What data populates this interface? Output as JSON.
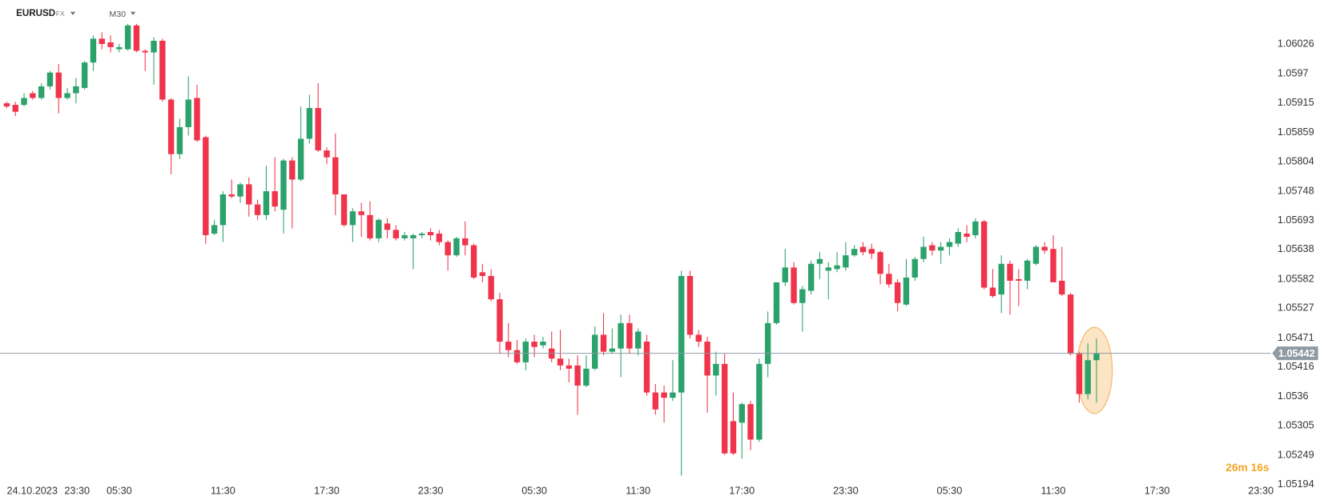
{
  "header": {
    "symbol": "EURUSD",
    "market": "FX",
    "timeframe": "M30"
  },
  "chart_data": {
    "type": "candlestick",
    "date_label": "24.10.2023",
    "countdown": "26m 16s",
    "up_color": "#2ba26c",
    "down_color": "#f0344b",
    "last_price_color": "#8f9aa3",
    "ylim": [
      1.05191,
      1.06109
    ],
    "yticks": [
      1.06026,
      1.0597,
      1.05915,
      1.05859,
      1.05804,
      1.05748,
      1.05693,
      1.05638,
      1.05582,
      1.05527,
      1.05471,
      1.05416,
      1.0536,
      1.05305,
      1.05249,
      1.05194
    ],
    "last_price": 1.05442,
    "categories": [
      null,
      "23:30",
      null,
      null,
      null,
      null,
      null,
      null,
      null,
      null,
      null,
      null,
      null,
      "05:30",
      null,
      null,
      null,
      null,
      null,
      null,
      null,
      null,
      null,
      null,
      null,
      "11:30",
      null,
      null,
      null,
      null,
      null,
      null,
      null,
      null,
      null,
      null,
      null,
      "17:30",
      null,
      null,
      null,
      null,
      null,
      null,
      null,
      null,
      null,
      null,
      null,
      "23:30",
      null,
      null,
      null,
      null,
      null,
      null,
      null,
      null,
      null,
      null,
      null,
      "05:30",
      null,
      null,
      null,
      null,
      null,
      null,
      null,
      null,
      null,
      null,
      null,
      "11:30",
      null,
      null,
      null,
      null,
      null,
      null,
      null,
      null,
      null,
      null,
      null,
      "17:30",
      null,
      null,
      null,
      null,
      null,
      null,
      null,
      null,
      null,
      null,
      null,
      "23:30",
      null,
      null,
      null,
      null,
      null,
      null,
      null,
      null,
      null,
      null,
      null,
      "05:30",
      null,
      null,
      null,
      null,
      null,
      null,
      null,
      null,
      null,
      null,
      null,
      "11:30",
      null,
      null,
      null,
      null,
      null,
      null,
      null,
      null,
      null,
      null,
      null,
      "17:30",
      null,
      null,
      null,
      null,
      null,
      null,
      null,
      null,
      null,
      null,
      null,
      "23:30"
    ],
    "open": [
      1.05914,
      1.05911,
      1.05911,
      1.05933,
      1.05924,
      1.05946,
      1.05972,
      1.05924,
      1.05933,
      1.05943,
      1.05991,
      1.06036,
      1.06029,
      1.06016,
      1.06016,
      1.06061,
      1.06013,
      1.0601,
      1.06032,
      1.05921,
      1.05818,
      1.05869,
      1.05924,
      1.0585,
      1.05668,
      1.05684,
      1.05742,
      1.05738,
      1.05761,
      1.05723,
      1.05703,
      1.05748,
      1.05713,
      1.05806,
      1.0577,
      1.05847,
      1.05905,
      1.05825,
      1.05812,
      1.05742,
      1.05684,
      1.0571,
      1.05703,
      1.05659,
      1.05687,
      1.05675,
      1.05659,
      1.05659,
      1.05665,
      1.05671,
      1.05668,
      1.05652,
      1.05627,
      1.05659,
      1.05646,
      1.05595,
      1.05588,
      1.05544,
      1.05464,
      1.05448,
      1.05425,
      1.05464,
      1.05457,
      1.05451,
      1.05432,
      1.05419,
      1.05419,
      1.05381,
      1.05413,
      1.05477,
      1.05445,
      1.05451,
      1.05499,
      1.05451,
      1.05464,
      1.05368,
      1.05368,
      1.05358,
      1.05368,
      1.05588,
      1.05477,
      1.05464,
      1.054,
      1.05422,
      1.05314,
      1.05311,
      1.05346,
      1.05279,
      1.05422,
      1.05499,
      1.05576,
      1.05604,
      1.05537,
      1.0556,
      1.05611,
      1.05598,
      1.05601,
      1.05604,
      1.05627,
      1.05643,
      1.05639,
      1.05633,
      1.05592,
      1.05576,
      1.05534,
      1.05585,
      1.0562,
      1.05646,
      1.05636,
      1.05643,
      1.05649,
      1.05668,
      1.05665,
      1.05691,
      1.05566,
      1.05553,
      1.05611,
      1.05582,
      1.05579,
      1.05611,
      1.05643,
      1.05639,
      1.05579,
      1.05553,
      1.05441,
      1.05365,
      1.05429,
      null,
      null,
      null,
      null,
      null,
      null,
      null,
      null,
      null,
      null,
      null,
      null,
      null,
      null,
      null,
      null,
      null,
      null,
      null
    ],
    "high": [
      1.05917,
      1.05917,
      1.05933,
      1.05937,
      1.05952,
      1.05975,
      1.05988,
      1.05943,
      1.05962,
      1.05994,
      1.06042,
      1.06048,
      1.06042,
      1.06026,
      1.06064,
      1.06064,
      1.06016,
      1.06039,
      1.06036,
      1.05924,
      1.05885,
      1.05965,
      1.05949,
      1.05853,
      1.05694,
      1.05748,
      1.0577,
      1.05764,
      1.05774,
      1.05732,
      1.05796,
      1.05812,
      1.05809,
      1.05812,
      1.05908,
      1.0593,
      1.05952,
      1.05831,
      1.05857,
      1.05742,
      1.05716,
      1.05726,
      1.05729,
      1.05697,
      1.05697,
      1.05684,
      1.05671,
      1.05668,
      1.05671,
      1.05678,
      1.05675,
      1.05655,
      1.05662,
      1.05691,
      1.05649,
      1.05611,
      1.05601,
      1.05556,
      1.05499,
      1.05467,
      1.0547,
      1.05477,
      1.05473,
      1.05483,
      1.05486,
      1.05432,
      1.05438,
      1.05438,
      1.05493,
      1.05518,
      1.05489,
      1.05515,
      1.05515,
      1.05489,
      1.05477,
      1.05384,
      1.05381,
      1.05429,
      1.05598,
      1.05598,
      1.05486,
      1.05473,
      1.05445,
      1.05441,
      1.05368,
      1.05349,
      1.05352,
      1.05432,
      1.05521,
      1.05576,
      1.05639,
      1.05614,
      1.05569,
      1.05617,
      1.05633,
      1.05614,
      1.05633,
      1.05652,
      1.05646,
      1.05652,
      1.05649,
      1.05636,
      1.05611,
      1.05582,
      1.0562,
      1.05624,
      1.05662,
      1.05652,
      1.05652,
      1.05659,
      1.05678,
      1.05684,
      1.05697,
      1.05694,
      1.05601,
      1.05627,
      1.05617,
      1.05601,
      1.0562,
      1.05646,
      1.05652,
      1.05665,
      1.05643,
      1.05556,
      1.05445,
      1.05461,
      1.0547,
      null,
      null,
      null,
      null,
      null,
      null,
      null,
      null,
      null,
      null,
      null,
      null,
      null,
      null,
      null,
      null,
      null,
      null,
      null
    ],
    "low": [
      1.05905,
      1.0589,
      1.05908,
      1.05921,
      1.05921,
      1.0594,
      1.05895,
      1.05921,
      1.05914,
      1.0594,
      1.05975,
      1.06016,
      1.0601,
      1.0601,
      1.06013,
      1.0601,
      1.05975,
      1.05949,
      1.05917,
      1.0578,
      1.05809,
      1.05853,
      1.05841,
      1.05649,
      1.05665,
      1.05652,
      1.05735,
      1.05726,
      1.057,
      1.05694,
      1.05694,
      1.0571,
      1.05668,
      1.05678,
      1.05767,
      1.05838,
      1.05822,
      1.05799,
      1.05703,
      1.05681,
      1.05652,
      1.05662,
      1.05655,
      1.05652,
      1.05659,
      1.05655,
      1.05655,
      1.05601,
      1.05659,
      1.05655,
      1.05646,
      1.05598,
      1.05624,
      1.05627,
      1.05582,
      1.05576,
      1.0554,
      1.05441,
      1.05435,
      1.05422,
      1.0541,
      1.05435,
      1.05451,
      1.05425,
      1.0541,
      1.05387,
      1.05326,
      1.05378,
      1.0541,
      1.05438,
      1.05441,
      1.05397,
      1.05441,
      1.05438,
      1.05362,
      1.05326,
      1.05311,
      1.05352,
      1.05211,
      1.0547,
      1.05454,
      1.0533,
      1.05362,
      1.0525,
      1.0525,
      1.05243,
      1.05259,
      1.05275,
      1.05397,
      1.05496,
      1.05569,
      1.05534,
      1.05483,
      1.05553,
      1.05582,
      1.05544,
      1.05595,
      1.05598,
      1.05624,
      1.05627,
      1.0562,
      1.05572,
      1.05566,
      1.05521,
      1.05531,
      1.05579,
      1.05614,
      1.05627,
      1.05611,
      1.05627,
      1.05643,
      1.05652,
      1.05659,
      1.05563,
      1.05547,
      1.05518,
      1.05515,
      1.05531,
      1.05563,
      1.05608,
      1.0563,
      1.05576,
      1.0555,
      1.05438,
      1.05349,
      1.05355,
      1.05349,
      null,
      null,
      null,
      null,
      null,
      null,
      null,
      null,
      null,
      null,
      null,
      null,
      null,
      null,
      null,
      null,
      null,
      null,
      null
    ],
    "close": [
      1.05908,
      1.05898,
      1.05924,
      1.05924,
      1.05946,
      1.05972,
      1.05924,
      1.05933,
      1.05946,
      1.05991,
      1.06036,
      1.06026,
      1.0602,
      1.0602,
      1.06061,
      1.06013,
      1.0601,
      1.06032,
      1.05921,
      1.05818,
      1.05869,
      1.05921,
      1.05844,
      1.05665,
      1.05684,
      1.05742,
      1.05738,
      1.05761,
      1.05723,
      1.05703,
      1.05748,
      1.05719,
      1.05806,
      1.0577,
      1.05847,
      1.05905,
      1.05825,
      1.05812,
      1.05742,
      1.05684,
      1.0571,
      1.05703,
      1.05659,
      1.05694,
      1.05675,
      1.05659,
      1.05665,
      1.05665,
      1.05668,
      1.05665,
      1.05652,
      1.05627,
      1.05659,
      1.05646,
      1.05585,
      1.05588,
      1.05544,
      1.05464,
      1.05448,
      1.05425,
      1.05464,
      1.05454,
      1.05464,
      1.05432,
      1.05419,
      1.05413,
      1.05381,
      1.05413,
      1.05477,
      1.05445,
      1.05451,
      1.05499,
      1.05451,
      1.05483,
      1.05368,
      1.05336,
      1.05358,
      1.05368,
      1.05588,
      1.05477,
      1.05464,
      1.054,
      1.05422,
      1.05253,
      1.05253,
      1.05346,
      1.05279,
      1.05422,
      1.05499,
      1.05576,
      1.05604,
      1.05537,
      1.05563,
      1.05611,
      1.0562,
      1.05604,
      1.05608,
      1.05627,
      1.05639,
      1.05633,
      1.0563,
      1.05592,
      1.05572,
      1.05537,
      1.05585,
      1.0562,
      1.05643,
      1.05636,
      1.05643,
      1.05652,
      1.05671,
      1.05662,
      1.05691,
      1.05566,
      1.0555,
      1.05611,
      1.05579,
      1.05579,
      1.05617,
      1.05643,
      1.05636,
      1.05576,
      1.05553,
      1.05441,
      1.05365,
      1.05429,
      1.05442,
      null,
      null,
      null,
      null,
      null,
      null,
      null,
      null,
      null,
      null,
      null,
      null,
      null,
      null,
      null,
      null,
      null,
      null,
      null
    ]
  }
}
